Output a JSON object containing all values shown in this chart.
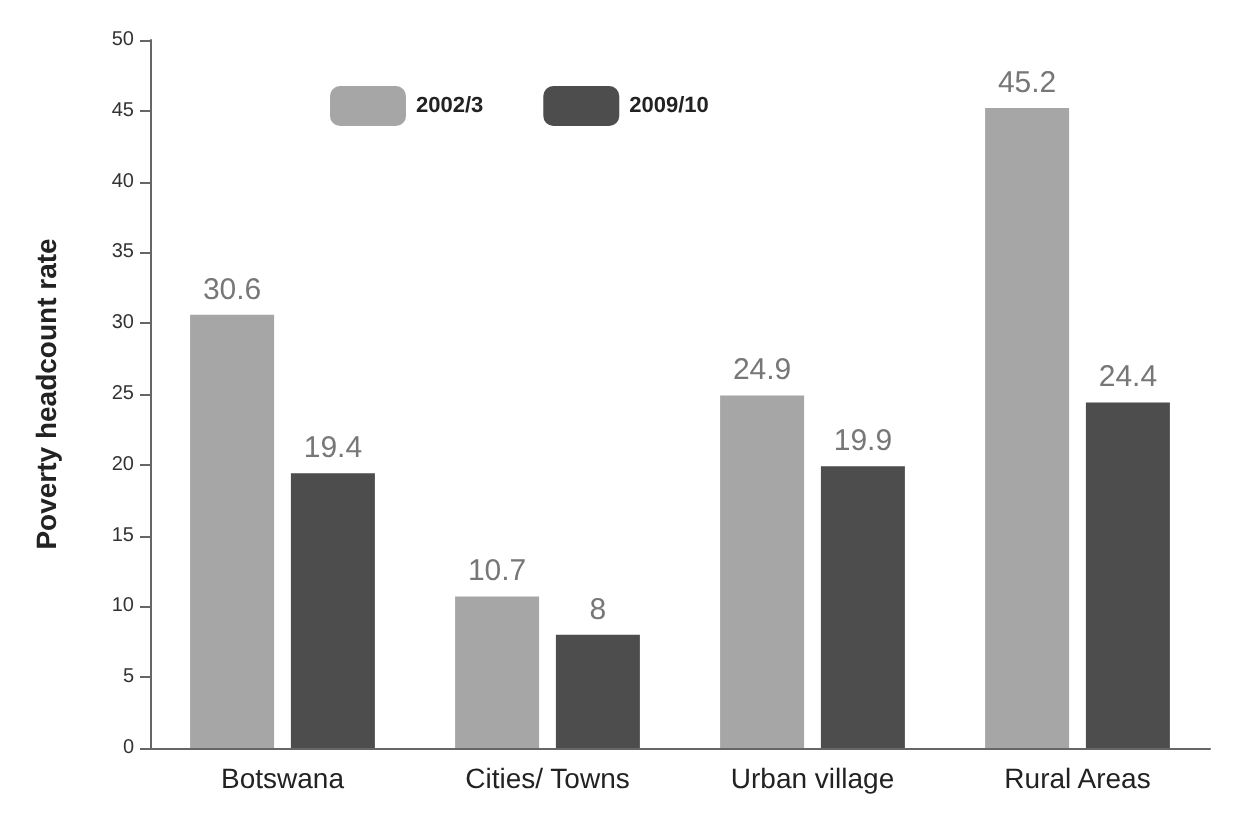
{
  "chart_data": {
    "type": "bar",
    "ylabel": "Poverty headcount rate",
    "categories": [
      "Botswana",
      "Cities/ Towns",
      "Urban village",
      "Rural Areas"
    ],
    "series": [
      {
        "name": "2002/3",
        "color": "#a6a6a6",
        "values": [
          30.6,
          10.7,
          24.9,
          45.2
        ]
      },
      {
        "name": "2009/10",
        "color": "#4d4d4d",
        "values": [
          19.4,
          8,
          19.9,
          24.4
        ]
      }
    ],
    "ylim": [
      0,
      50
    ],
    "yticks": [
      0,
      5,
      10,
      15,
      20,
      25,
      30,
      35,
      40,
      45,
      50
    ],
    "grid": false,
    "legend": "top left",
    "data_labels": true
  }
}
